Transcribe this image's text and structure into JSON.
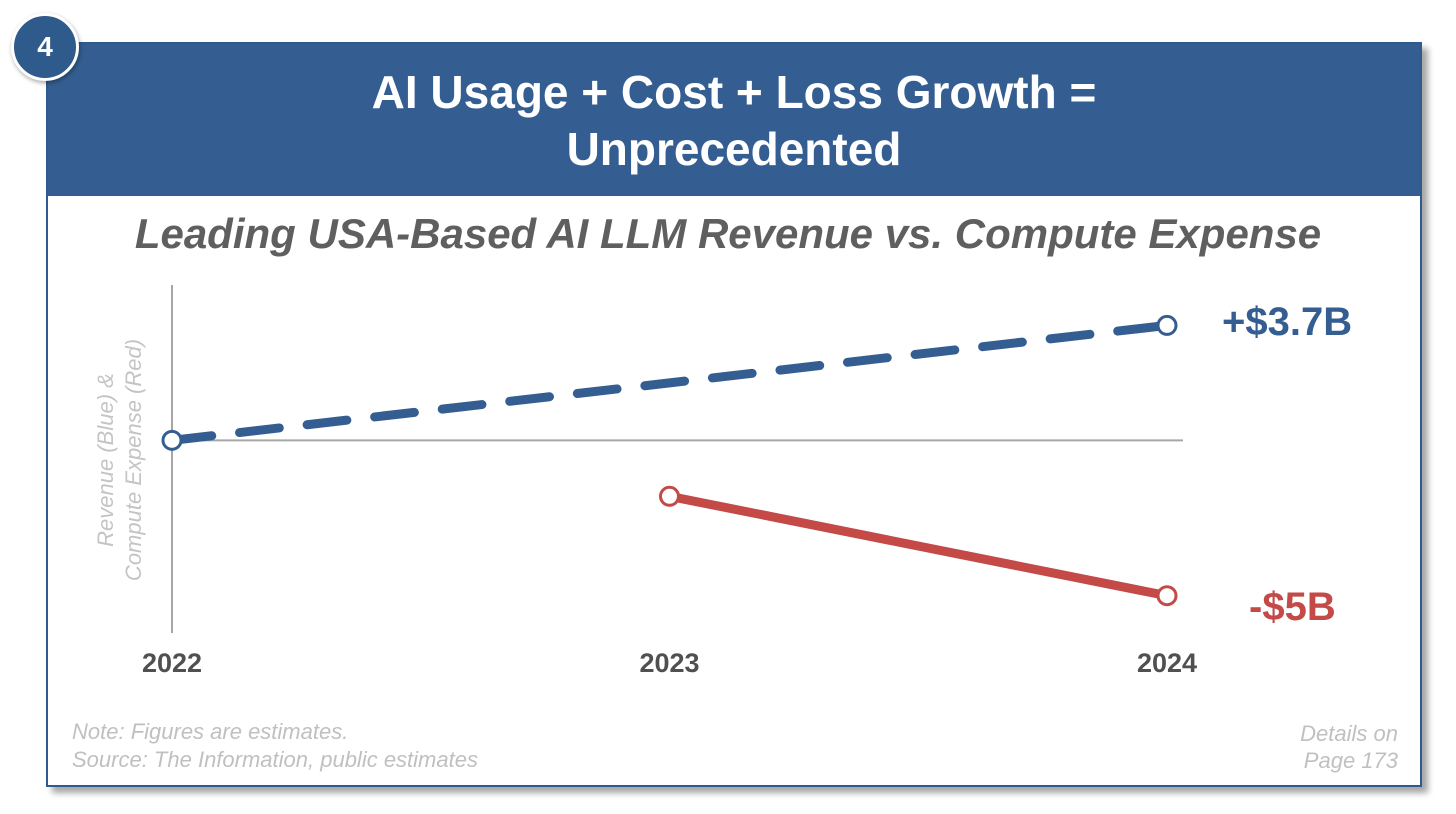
{
  "badge": "4",
  "title": [
    "AI Usage + Cost + Loss Growth =",
    "Unprecedented"
  ],
  "colors": {
    "header": "#345e91",
    "revenue": "#345e91",
    "expense": "#c34a47",
    "axis": "#a6a6a6"
  },
  "chart_data": {
    "type": "line",
    "title": "Leading USA-Based AI LLM Revenue vs. Compute Expense",
    "ylabel": [
      "Revenue (Blue) &",
      "Compute Expense (Red)"
    ],
    "xlabel": "",
    "categories": [
      "2022",
      "2023",
      "2024"
    ],
    "series": [
      {
        "name": "Revenue (Blue)",
        "style": "dashed",
        "color": "#345e91",
        "x": [
          "2022",
          "2024"
        ],
        "values": [
          0,
          3.7
        ],
        "end_label": "+$3.7B"
      },
      {
        "name": "Compute Expense (Red)",
        "style": "solid",
        "color": "#c34a47",
        "x": [
          "2023",
          "2024"
        ],
        "values": [
          -1.8,
          -5
        ],
        "end_label": "-$5B"
      }
    ],
    "ylim": [
      -6.2,
      5.0
    ],
    "grid": false,
    "legend": "none"
  },
  "footer": {
    "note": [
      "Note: Figures are estimates.",
      "Source: The Information, public estimates"
    ],
    "details": [
      "Details on",
      "Page 173"
    ]
  }
}
